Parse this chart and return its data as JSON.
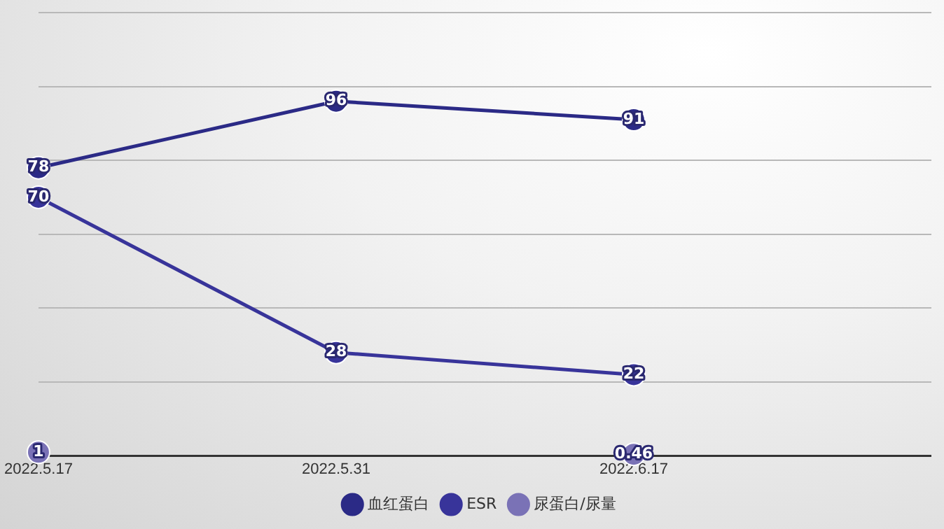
{
  "chart_data": {
    "type": "line",
    "categories": [
      "2022.5.17",
      "2022.5.31",
      "2022.6.17",
      null
    ],
    "series": [
      {
        "name": "血红蛋白",
        "color": "#2b2a86",
        "values": [
          78,
          96,
          91,
          null
        ]
      },
      {
        "name": "ESR",
        "color": "#38349a",
        "values": [
          70,
          28,
          22,
          null
        ]
      },
      {
        "name": "尿蛋白/尿量",
        "type": "scatter",
        "color": "#7a72b6",
        "values": [
          1,
          null,
          0.46,
          null
        ]
      }
    ],
    "ylim": [
      0,
      120
    ],
    "yticks": [
      0,
      20,
      40,
      60,
      80,
      100,
      120
    ],
    "tick_labels": "x",
    "grid": "y",
    "legend": "bottom",
    "marker": "circle",
    "line_style": "solid",
    "data_labels": true
  }
}
